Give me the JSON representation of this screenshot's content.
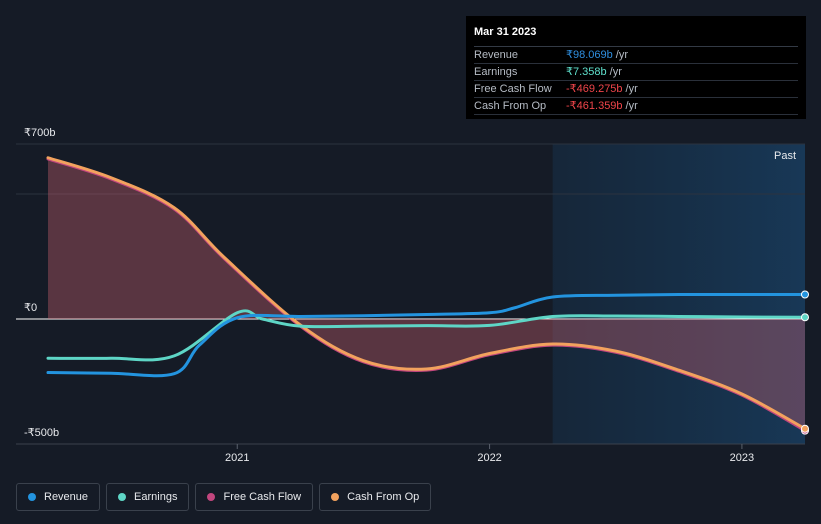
{
  "tooltip": {
    "date": "Mar 31 2023",
    "rows": [
      {
        "label": "Revenue",
        "value": "₹98.069b",
        "unit": "/yr",
        "color": "#2f8fe0"
      },
      {
        "label": "Earnings",
        "value": "₹7.358b",
        "unit": "/yr",
        "color": "#5fe0cc"
      },
      {
        "label": "Free Cash Flow",
        "value": "-₹469.275b",
        "unit": "/yr",
        "color": "#f0454a"
      },
      {
        "label": "Cash From Op",
        "value": "-₹461.359b",
        "unit": "/yr",
        "color": "#f0454a"
      }
    ]
  },
  "past_label": "Past",
  "legend": [
    {
      "label": "Revenue",
      "color": "#2394df"
    },
    {
      "label": "Earnings",
      "color": "#5ed6c6"
    },
    {
      "label": "Free Cash Flow",
      "color": "#c2467e"
    },
    {
      "label": "Cash From Op",
      "color": "#f2a25e"
    }
  ],
  "chart_data": {
    "type": "line",
    "y_tick_labels": [
      "₹700b",
      "₹0",
      "-₹500b"
    ],
    "x_tick_labels": [
      "2021",
      "2022",
      "2023"
    ],
    "x_tick_values": [
      2021.0,
      2022.0,
      2023.0
    ],
    "ylim": [
      -500,
      700
    ],
    "xlim": [
      2020.25,
      2023.25
    ],
    "shaded_region": {
      "from": 2022.25,
      "to": 2023.25,
      "label": "Past"
    },
    "series": [
      {
        "name": "Revenue",
        "color": "#2394df",
        "x": [
          2020.25,
          2020.5,
          2020.75,
          2020.85,
          2021.0,
          2021.25,
          2021.5,
          2021.75,
          2022.0,
          2022.1,
          2022.25,
          2022.5,
          2022.75,
          2023.0,
          2023.25
        ],
        "y": [
          -225,
          -228,
          -230,
          -110,
          5,
          10,
          13,
          18,
          25,
          45,
          88,
          95,
          98,
          98,
          98
        ]
      },
      {
        "name": "Earnings",
        "color": "#5ed6c6",
        "x": [
          2020.25,
          2020.5,
          2020.75,
          2021.0,
          2021.1,
          2021.25,
          2021.5,
          2021.75,
          2022.0,
          2022.25,
          2022.5,
          2022.75,
          2023.0,
          2023.25
        ],
        "y": [
          -165,
          -165,
          -155,
          25,
          0,
          -30,
          -30,
          -28,
          -27,
          10,
          12,
          10,
          8,
          7
        ]
      },
      {
        "name": "Free Cash Flow",
        "color": "#c2467e",
        "x": [
          2020.25,
          2020.5,
          2020.75,
          2020.95,
          2021.25,
          2021.5,
          2021.75,
          2022.0,
          2022.25,
          2022.5,
          2022.75,
          2023.0,
          2023.25
        ],
        "y": [
          640,
          560,
          440,
          240,
          -30,
          -180,
          -215,
          -150,
          -110,
          -140,
          -220,
          -320,
          -469
        ]
      },
      {
        "name": "Cash From Op",
        "color": "#f2a25e",
        "x": [
          2020.25,
          2020.5,
          2020.75,
          2020.95,
          2021.25,
          2021.5,
          2021.75,
          2022.0,
          2022.25,
          2022.5,
          2022.75,
          2023.0,
          2023.25
        ],
        "y": [
          645,
          565,
          445,
          245,
          -25,
          -175,
          -210,
          -145,
          -105,
          -135,
          -215,
          -315,
          -461
        ]
      }
    ]
  }
}
